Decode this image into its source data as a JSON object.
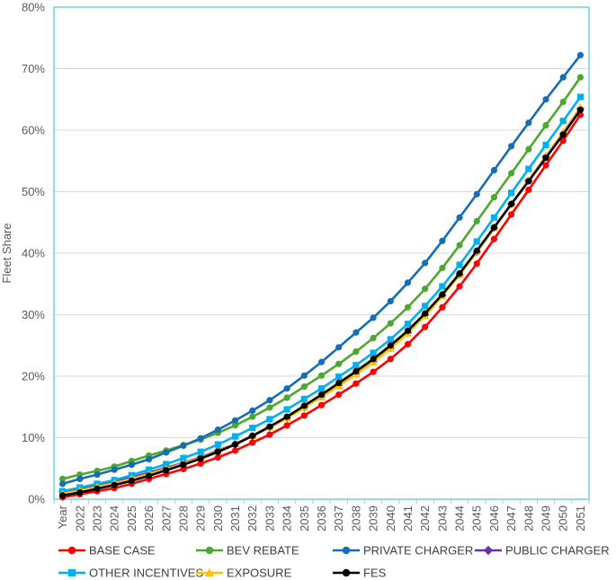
{
  "chart_data": {
    "type": "line",
    "ylabel": "Fleet Share",
    "xlabel": "",
    "ylim": [
      0,
      80
    ],
    "yticks": [
      "0%",
      "10%",
      "20%",
      "30%",
      "40%",
      "50%",
      "60%",
      "70%",
      "80%"
    ],
    "categories": [
      "Year",
      "2022",
      "2023",
      "2024",
      "2025",
      "2026",
      "2027",
      "2028",
      "2029",
      "2030",
      "2031",
      "2032",
      "2033",
      "2034",
      "2035",
      "2036",
      "2037",
      "2038",
      "2039",
      "2040",
      "2041",
      "2042",
      "2043",
      "2044",
      "2045",
      "2046",
      "2047",
      "2048",
      "2049",
      "2050",
      "2051"
    ],
    "grid": true,
    "legend_position": "bottom",
    "series": [
      {
        "name": "BASE CASE",
        "color": "#ff0000",
        "marker": "circle",
        "values": [
          0.3,
          0.8,
          1.3,
          1.8,
          2.5,
          3.3,
          4.1,
          4.9,
          5.8,
          6.8,
          7.9,
          9.2,
          10.5,
          12.0,
          13.6,
          15.3,
          17.0,
          18.8,
          20.7,
          22.8,
          25.2,
          28.0,
          31.2,
          34.6,
          38.3,
          42.3,
          46.3,
          50.3,
          54.3,
          58.3,
          62.5
        ]
      },
      {
        "name": "BEV REBATE",
        "color": "#4ea72e",
        "marker": "circle",
        "values": [
          3.3,
          4.0,
          4.6,
          5.3,
          6.2,
          7.1,
          7.9,
          8.8,
          9.7,
          10.8,
          12.0,
          13.4,
          14.9,
          16.5,
          18.3,
          20.1,
          22.0,
          24.0,
          26.2,
          28.6,
          31.2,
          34.2,
          37.6,
          41.3,
          45.2,
          49.1,
          53.0,
          56.9,
          60.8,
          64.6,
          68.6
        ]
      },
      {
        "name": "PRIVATE CHARGER",
        "color": "#156eb4",
        "marker": "circle",
        "values": [
          2.5,
          3.3,
          4.0,
          4.8,
          5.6,
          6.5,
          7.6,
          8.7,
          9.9,
          11.3,
          12.8,
          14.4,
          16.1,
          18.0,
          20.1,
          22.3,
          24.7,
          27.1,
          29.5,
          32.2,
          35.2,
          38.4,
          42.0,
          45.8,
          49.6,
          53.5,
          57.4,
          61.2,
          65.0,
          68.6,
          72.2
        ]
      },
      {
        "name": "PUBLIC CHARGER",
        "color": "#7030a0",
        "marker": "diamond",
        "values": [
          1.2,
          1.6,
          2.2,
          2.8,
          3.5,
          4.3,
          5.1,
          5.9,
          6.8,
          7.9,
          9.0,
          10.3,
          11.7,
          13.2,
          14.9,
          16.7,
          18.5,
          20.4,
          22.4,
          24.6,
          27.1,
          29.9,
          33.1,
          36.5,
          40.2,
          44.1,
          48.0,
          51.8,
          55.7,
          59.4,
          63.5
        ]
      },
      {
        "name": "OTHER INCENTIVES",
        "color": "#00b0f0",
        "marker": "square",
        "values": [
          1.3,
          1.9,
          2.5,
          3.1,
          3.9,
          4.8,
          5.7,
          6.7,
          7.7,
          8.9,
          10.2,
          11.6,
          13.0,
          14.6,
          16.3,
          18.0,
          19.9,
          21.8,
          23.8,
          26.0,
          28.5,
          31.4,
          34.6,
          38.1,
          41.9,
          45.8,
          49.8,
          53.7,
          57.6,
          61.5,
          65.4
        ]
      },
      {
        "name": "EXPOSURE",
        "color": "#ffc000",
        "marker": "triangle",
        "values": [
          0.9,
          1.4,
          2.0,
          2.6,
          3.3,
          4.1,
          4.9,
          5.8,
          6.7,
          7.8,
          9.0,
          10.3,
          11.7,
          13.2,
          14.9,
          16.6,
          18.4,
          20.3,
          22.3,
          24.5,
          27.0,
          29.8,
          33.0,
          36.5,
          40.2,
          44.1,
          48.0,
          51.9,
          55.8,
          59.7,
          63.7
        ]
      },
      {
        "name": "FES",
        "color": "#000000",
        "marker": "circle",
        "values": [
          0.6,
          1.1,
          1.7,
          2.3,
          3.0,
          3.8,
          4.7,
          5.6,
          6.6,
          7.7,
          8.9,
          10.3,
          11.8,
          13.4,
          15.2,
          17.0,
          18.9,
          20.8,
          22.8,
          25.0,
          27.4,
          30.2,
          33.3,
          36.7,
          40.4,
          44.2,
          48.0,
          51.7,
          55.5,
          59.3,
          63.3
        ]
      }
    ]
  }
}
